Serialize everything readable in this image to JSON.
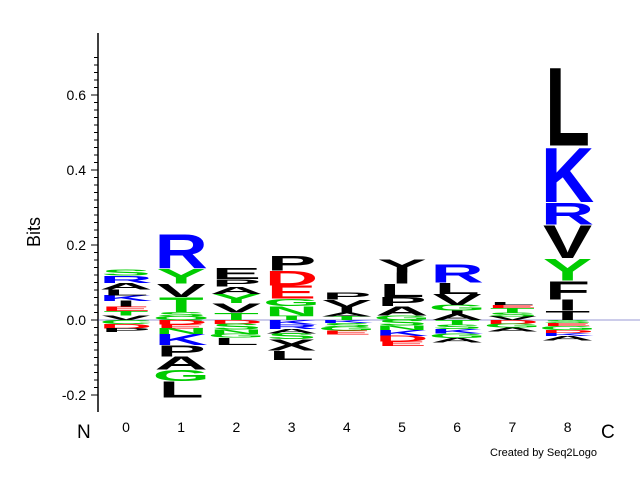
{
  "chart_data": {
    "type": "sequence-logo",
    "ylabel": "Bits",
    "ylim": [
      -0.2,
      0.75
    ],
    "yticks": [
      "-0.2",
      "0.0",
      "0.2",
      "0.4",
      "0.6"
    ],
    "ytick_values": [
      -0.2,
      0.0,
      0.2,
      0.4,
      0.6
    ],
    "n_label": "N",
    "c_label": "C",
    "credit": "Created by Seq2Logo",
    "colors": {
      "hydrophobic": "#000000",
      "positive": "#0000ff",
      "negative": "#ff0000",
      "polar": "#00cc00"
    },
    "positions": [
      {
        "label": "0",
        "positive": [
          {
            "aa": "V",
            "height": 0.012,
            "color": "#000000"
          },
          {
            "aa": "T",
            "height": 0.012,
            "color": "#00cc00"
          },
          {
            "aa": "E",
            "height": 0.012,
            "color": "#ff0000"
          },
          {
            "aa": "I",
            "height": 0.015,
            "color": "#000000"
          },
          {
            "aa": "K",
            "height": 0.015,
            "color": "#0000ff"
          },
          {
            "aa": "L",
            "height": 0.015,
            "color": "#000000"
          },
          {
            "aa": "A",
            "height": 0.018,
            "color": "#000000"
          },
          {
            "aa": "R",
            "height": 0.02,
            "color": "#0000ff"
          },
          {
            "aa": "S",
            "height": 0.015,
            "color": "#00cc00"
          }
        ],
        "negative": [
          {
            "aa": "C",
            "height": 0.01,
            "color": "#00cc00"
          },
          {
            "aa": "D",
            "height": 0.012,
            "color": "#ff0000"
          },
          {
            "aa": "P",
            "height": 0.01,
            "color": "#000000"
          }
        ]
      },
      {
        "label": "1",
        "positive": [
          {
            "aa": "Q",
            "height": 0.01,
            "color": "#00cc00"
          },
          {
            "aa": "S",
            "height": 0.012,
            "color": "#00cc00"
          },
          {
            "aa": "T",
            "height": 0.04,
            "color": "#00cc00"
          },
          {
            "aa": "V",
            "height": 0.035,
            "color": "#000000"
          },
          {
            "aa": "Y",
            "height": 0.04,
            "color": "#00cc00"
          },
          {
            "aa": "R",
            "height": 0.095,
            "color": "#0000ff"
          }
        ],
        "negative": [
          {
            "aa": "D",
            "height": 0.012,
            "color": "#ff0000"
          },
          {
            "aa": "E",
            "height": 0.01,
            "color": "#ff0000"
          },
          {
            "aa": "N",
            "height": 0.015,
            "color": "#00cc00"
          },
          {
            "aa": "K",
            "height": 0.03,
            "color": "#0000ff"
          },
          {
            "aa": "P",
            "height": 0.03,
            "color": "#000000"
          },
          {
            "aa": "A",
            "height": 0.035,
            "color": "#000000"
          },
          {
            "aa": "G",
            "height": 0.03,
            "color": "#00cc00"
          },
          {
            "aa": "L",
            "height": 0.045,
            "color": "#000000"
          }
        ]
      },
      {
        "label": "2",
        "positive": [
          {
            "aa": "T",
            "height": 0.02,
            "color": "#00cc00"
          },
          {
            "aa": "V",
            "height": 0.025,
            "color": "#000000"
          },
          {
            "aa": "Y",
            "height": 0.025,
            "color": "#00cc00"
          },
          {
            "aa": "A",
            "height": 0.02,
            "color": "#000000"
          },
          {
            "aa": "P",
            "height": 0.02,
            "color": "#000000"
          },
          {
            "aa": "E",
            "height": 0.03,
            "color": "#000000"
          }
        ],
        "negative": [
          {
            "aa": "D",
            "height": 0.01,
            "color": "#ff0000"
          },
          {
            "aa": "S",
            "height": 0.015,
            "color": "#00cc00"
          },
          {
            "aa": "N",
            "height": 0.012,
            "color": "#00cc00"
          },
          {
            "aa": "G",
            "height": 0.01,
            "color": "#00cc00"
          },
          {
            "aa": "L",
            "height": 0.02,
            "color": "#000000"
          }
        ]
      },
      {
        "label": "3",
        "positive": [
          {
            "aa": "T",
            "height": 0.012,
            "color": "#00cc00"
          },
          {
            "aa": "N",
            "height": 0.025,
            "color": "#00cc00"
          },
          {
            "aa": "G",
            "height": 0.02,
            "color": "#00cc00"
          },
          {
            "aa": "E",
            "height": 0.035,
            "color": "#ff0000"
          },
          {
            "aa": "D",
            "height": 0.04,
            "color": "#ff0000"
          },
          {
            "aa": "P",
            "height": 0.04,
            "color": "#000000"
          }
        ],
        "negative": [
          {
            "aa": "K",
            "height": 0.012,
            "color": "#0000ff"
          },
          {
            "aa": "R",
            "height": 0.012,
            "color": "#0000ff"
          },
          {
            "aa": "A",
            "height": 0.012,
            "color": "#000000"
          },
          {
            "aa": "S",
            "height": 0.015,
            "color": "#00cc00"
          },
          {
            "aa": "X",
            "height": 0.03,
            "color": "#000000"
          },
          {
            "aa": "L",
            "height": 0.025,
            "color": "#000000"
          }
        ]
      },
      {
        "label": "4",
        "positive": [
          {
            "aa": "T",
            "height": 0.01,
            "color": "#00cc00"
          },
          {
            "aa": "A",
            "height": 0.01,
            "color": "#000000"
          },
          {
            "aa": "I",
            "height": 0.015,
            "color": "#000000"
          },
          {
            "aa": "V",
            "height": 0.02,
            "color": "#000000"
          },
          {
            "aa": "P",
            "height": 0.02,
            "color": "#000000"
          }
        ],
        "negative": [
          {
            "aa": "K",
            "height": 0.008,
            "color": "#0000ff"
          },
          {
            "aa": "S",
            "height": 0.01,
            "color": "#00cc00"
          },
          {
            "aa": "G",
            "height": 0.01,
            "color": "#00cc00"
          },
          {
            "aa": "E",
            "height": 0.01,
            "color": "#ff0000"
          }
        ]
      },
      {
        "label": "5",
        "positive": [
          {
            "aa": "G",
            "height": 0.012,
            "color": "#00cc00"
          },
          {
            "aa": "A",
            "height": 0.025,
            "color": "#000000"
          },
          {
            "aa": "P",
            "height": 0.025,
            "color": "#000000"
          },
          {
            "aa": "L",
            "height": 0.035,
            "color": "#000000"
          },
          {
            "aa": "I",
            "height": 0.03,
            "color": "#000000"
          },
          {
            "aa": "Y",
            "height": 0.035,
            "color": "#000000"
          }
        ],
        "negative": [
          {
            "aa": "S",
            "height": 0.015,
            "color": "#00cc00"
          },
          {
            "aa": "N",
            "height": 0.012,
            "color": "#00cc00"
          },
          {
            "aa": "K",
            "height": 0.015,
            "color": "#0000ff"
          },
          {
            "aa": "D",
            "height": 0.015,
            "color": "#ff0000"
          },
          {
            "aa": "E",
            "height": 0.012,
            "color": "#ff0000"
          }
        ]
      },
      {
        "label": "6",
        "positive": [
          {
            "aa": "A",
            "height": 0.015,
            "color": "#000000"
          },
          {
            "aa": "I",
            "height": 0.01,
            "color": "#000000"
          },
          {
            "aa": "G",
            "height": 0.015,
            "color": "#00cc00"
          },
          {
            "aa": "V",
            "height": 0.03,
            "color": "#000000"
          },
          {
            "aa": "L",
            "height": 0.03,
            "color": "#000000"
          },
          {
            "aa": "R",
            "height": 0.05,
            "color": "#0000ff"
          }
        ],
        "negative": [
          {
            "aa": "T",
            "height": 0.012,
            "color": "#00cc00"
          },
          {
            "aa": "S",
            "height": 0.012,
            "color": "#00cc00"
          },
          {
            "aa": "K",
            "height": 0.012,
            "color": "#0000ff"
          },
          {
            "aa": "G",
            "height": 0.012,
            "color": "#00cc00"
          },
          {
            "aa": "A",
            "height": 0.012,
            "color": "#000000"
          }
        ]
      },
      {
        "label": "7",
        "positive": [
          {
            "aa": "V",
            "height": 0.01,
            "color": "#000000"
          },
          {
            "aa": "S",
            "height": 0.01,
            "color": "#00cc00"
          },
          {
            "aa": "T",
            "height": 0.012,
            "color": "#00cc00"
          },
          {
            "aa": "E",
            "height": 0.008,
            "color": "#ff0000"
          },
          {
            "aa": "L",
            "height": 0.008,
            "color": "#000000"
          }
        ],
        "negative": [
          {
            "aa": "D",
            "height": 0.01,
            "color": "#ff0000"
          },
          {
            "aa": "G",
            "height": 0.01,
            "color": "#00cc00"
          },
          {
            "aa": "A",
            "height": 0.01,
            "color": "#000000"
          }
        ]
      },
      {
        "label": "8",
        "positive": [
          {
            "aa": "T",
            "height": 0.025,
            "color": "#000000"
          },
          {
            "aa": "I",
            "height": 0.03,
            "color": "#000000"
          },
          {
            "aa": "F",
            "height": 0.05,
            "color": "#000000"
          },
          {
            "aa": "Y",
            "height": 0.06,
            "color": "#00cc00"
          },
          {
            "aa": "V",
            "height": 0.09,
            "color": "#000000"
          },
          {
            "aa": "R",
            "height": 0.06,
            "color": "#0000ff"
          },
          {
            "aa": "K",
            "height": 0.15,
            "color": "#0000ff"
          },
          {
            "aa": "L",
            "height": 0.215,
            "color": "#000000"
          }
        ],
        "negative": [
          {
            "aa": "S",
            "height": 0.008,
            "color": "#00cc00"
          },
          {
            "aa": "E",
            "height": 0.008,
            "color": "#ff0000"
          },
          {
            "aa": "G",
            "height": 0.01,
            "color": "#00cc00"
          },
          {
            "aa": "D",
            "height": 0.008,
            "color": "#ff0000"
          },
          {
            "aa": "K",
            "height": 0.008,
            "color": "#0000ff"
          },
          {
            "aa": "A",
            "height": 0.012,
            "color": "#000000"
          }
        ]
      }
    ]
  }
}
